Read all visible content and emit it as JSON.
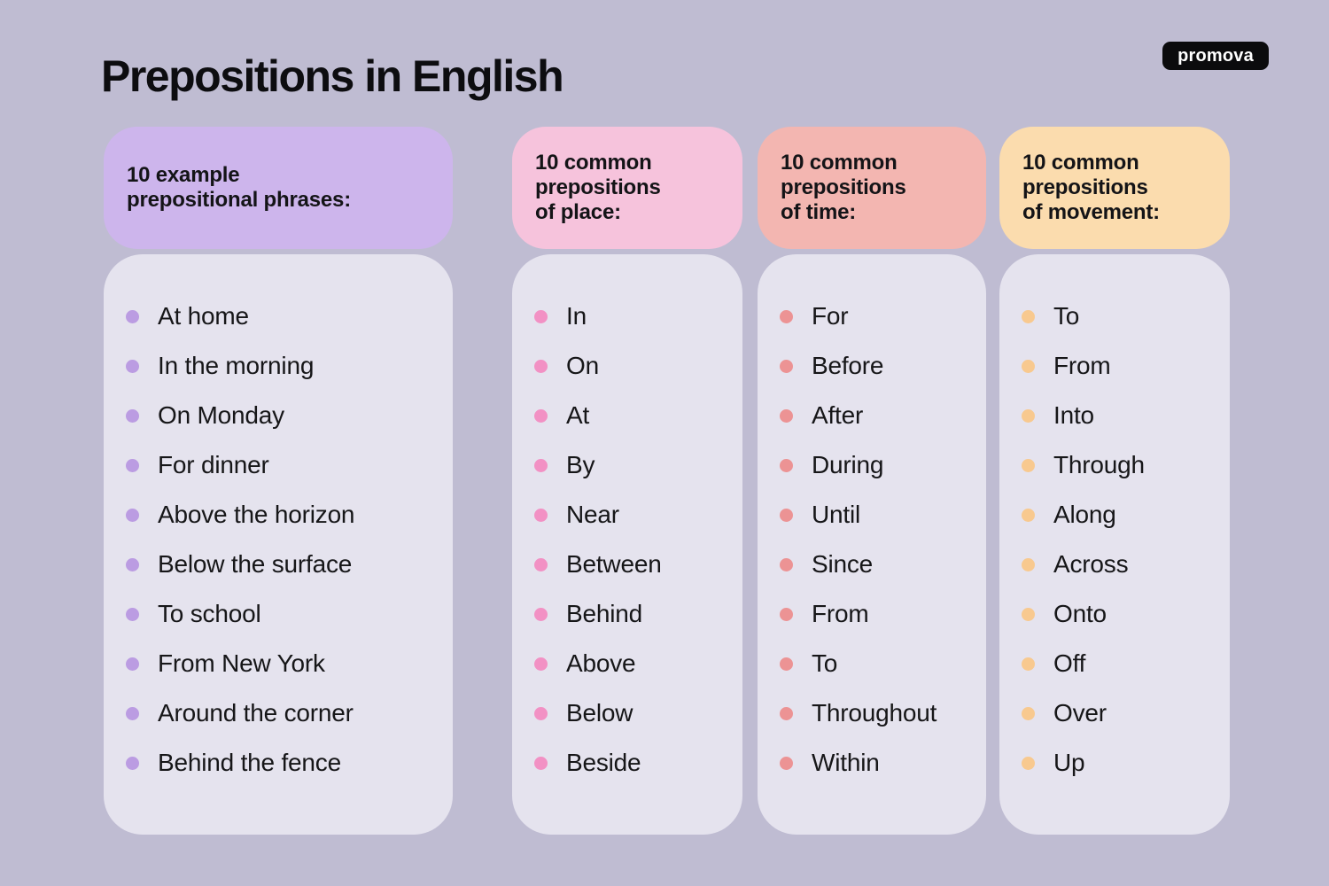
{
  "page": {
    "title": "Prepositions in English",
    "logo": "promova",
    "background_color": "#bfbcd2",
    "card_color": "#e5e3ee",
    "text_color": "#141417"
  },
  "columns": [
    {
      "header": "10 example\nprepositional phrases:",
      "header_bg": "#cdb5ec",
      "bullet_color": "#bb9ce2",
      "items": [
        "At home",
        "In the morning",
        "On Monday",
        "For dinner",
        "Above the horizon",
        "Below the surface",
        "To school",
        "From New York",
        "Around the corner",
        "Behind the fence"
      ]
    },
    {
      "header": "10 common\nprepositions\nof place:",
      "header_bg": "#f6c3dc",
      "bullet_color": "#f291c4",
      "items": [
        "In",
        "On",
        "At",
        "By",
        "Near",
        "Between",
        "Behind",
        "Above",
        "Below",
        "Beside"
      ]
    },
    {
      "header": "10 common\nprepositions\nof time:",
      "header_bg": "#f3b6b1",
      "bullet_color": "#ec9394",
      "items": [
        "For",
        "Before",
        "After",
        "During",
        "Until",
        "Since",
        "From",
        "To",
        "Throughout",
        "Within"
      ]
    },
    {
      "header": "10 common\nprepositions\nof movement:",
      "header_bg": "#fbdcae",
      "bullet_color": "#f8c98f",
      "items": [
        "To",
        "From",
        "Into",
        "Through",
        "Along",
        "Across",
        "Onto",
        "Off",
        "Over",
        "Up"
      ]
    }
  ]
}
